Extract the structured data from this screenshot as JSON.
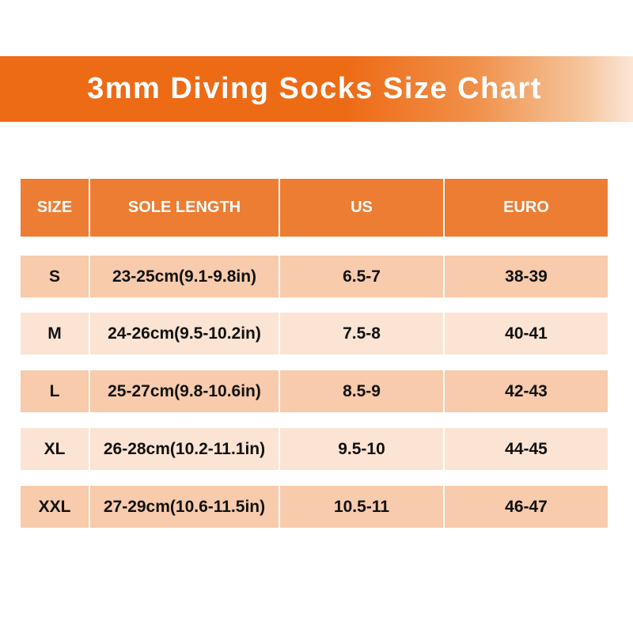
{
  "title": "3mm Diving Socks Size Chart",
  "headers": [
    "SIZE",
    "SOLE LENGTH",
    "US",
    "EURO"
  ],
  "rows": [
    [
      "S",
      "23-25cm(9.1-9.8in)",
      "6.5-7",
      "38-39"
    ],
    [
      "M",
      "24-26cm(9.5-10.2in)",
      "7.5-8",
      "40-41"
    ],
    [
      "L",
      "25-27cm(9.8-10.6in)",
      "8.5-9",
      "42-43"
    ],
    [
      "XL",
      "26-28cm(10.2-11.1in)",
      "9.5-10",
      "44-45"
    ],
    [
      "XXL",
      "27-29cm(10.6-11.5in)",
      "10.5-11",
      "46-47"
    ]
  ],
  "colors": {
    "banner": "#ee6b16",
    "header": "#ec7d33",
    "row_dark": "#f7cbab",
    "row_light": "#fbe4d4"
  }
}
